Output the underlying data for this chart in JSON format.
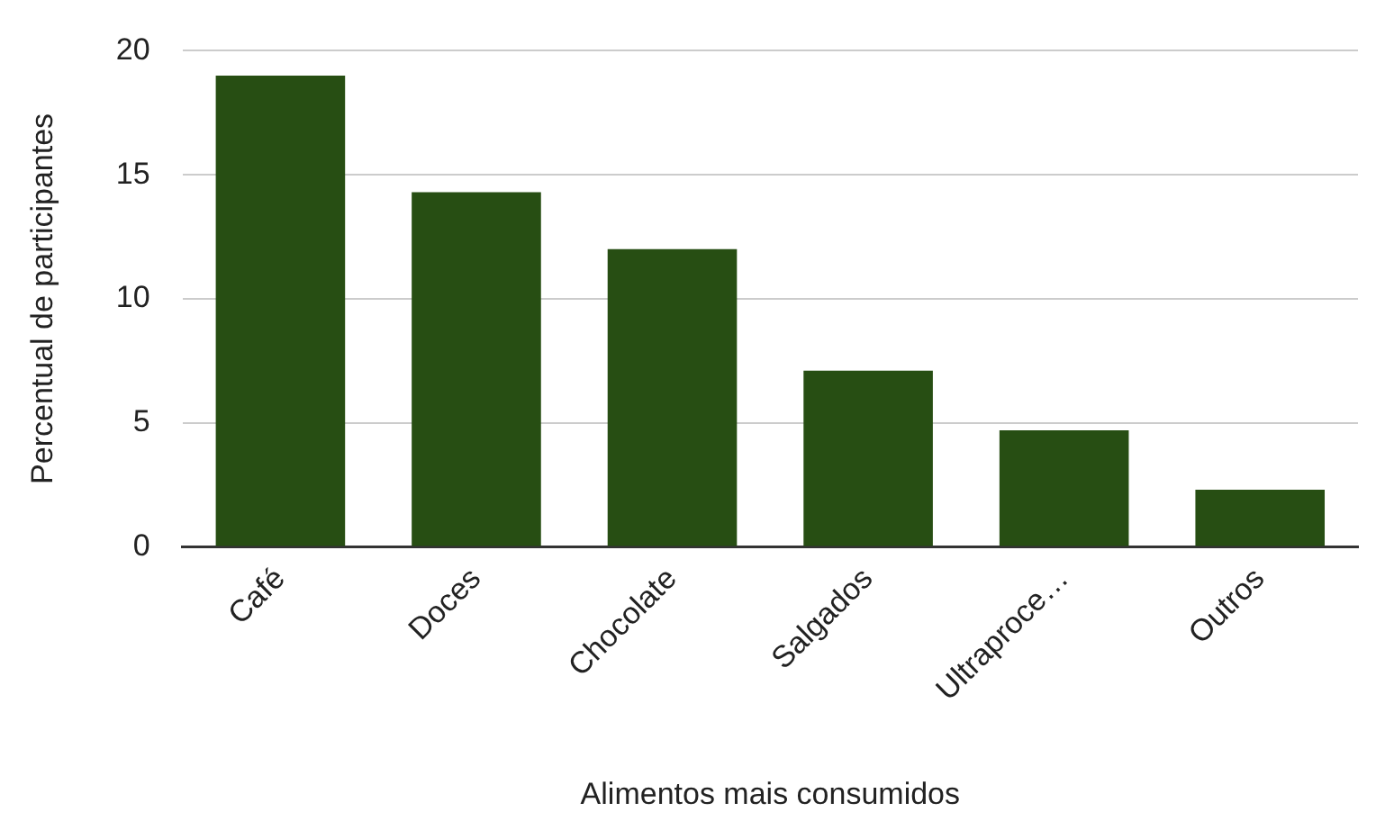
{
  "chart_data": {
    "type": "bar",
    "xlabel": "Alimentos mais consumidos",
    "ylabel": "Percentual de participantes",
    "categories": [
      "Café",
      "Doces",
      "Chocolate",
      "Salgados",
      "Ultraproce…",
      "Outros"
    ],
    "values": [
      19,
      14.3,
      12,
      7.1,
      4.7,
      2.3
    ],
    "color": "#274e13",
    "ylim": [
      0,
      20
    ],
    "yticks": [
      0,
      5,
      10,
      15,
      20
    ],
    "grid": "y"
  }
}
